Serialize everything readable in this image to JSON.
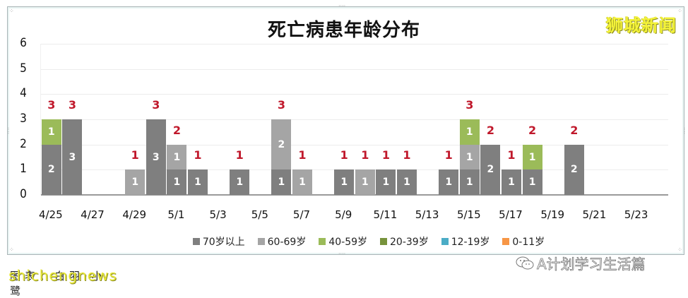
{
  "watermark_top": "狮城新闻",
  "watermark_bottom": "shichengnews",
  "watermark_bottom_under": "图表：白羽·小鹭",
  "source_badge": "A计划学习生活篇",
  "colors": {
    "70+": "#7f7f7f",
    "60-69": "#a5a5a5",
    "40-59": "#9bbb59",
    "20-39": "#77933c",
    "12-19": "#4bacc6",
    "0-11": "#f79646",
    "total_label": "#c0182b"
  },
  "chart_data": {
    "type": "bar",
    "stacked": true,
    "title": "死亡病患年龄分布",
    "xlabel": "",
    "ylabel": "",
    "ylim": [
      0,
      6
    ],
    "yticks": [
      0,
      1,
      2,
      3,
      4,
      5,
      6
    ],
    "grid": true,
    "legend_position": "bottom",
    "categories": [
      "4/25",
      "4/26",
      "4/27",
      "4/28",
      "4/29",
      "4/30",
      "5/1",
      "5/2",
      "5/3",
      "5/4",
      "5/5",
      "5/6",
      "5/7",
      "5/8",
      "5/9",
      "5/10",
      "5/11",
      "5/12",
      "5/13",
      "5/14",
      "5/15",
      "5/16",
      "5/17",
      "5/18",
      "5/19",
      "5/20",
      "5/21",
      "5/22",
      "5/23",
      "5/24"
    ],
    "xtick_labels": [
      "4/25",
      "4/27",
      "4/29",
      "5/1",
      "5/3",
      "5/5",
      "5/7",
      "5/9",
      "5/11",
      "5/13",
      "5/15",
      "5/17",
      "5/19",
      "5/21",
      "5/23"
    ],
    "series": [
      {
        "name": "70岁以上",
        "values": [
          2,
          3,
          0,
          0,
          0,
          3,
          1,
          1,
          0,
          1,
          0,
          1,
          0,
          0,
          1,
          0,
          1,
          1,
          0,
          1,
          1,
          2,
          1,
          1,
          0,
          2,
          0,
          0,
          0,
          0
        ]
      },
      {
        "name": "60-69岁",
        "values": [
          0,
          0,
          0,
          0,
          1,
          0,
          1,
          0,
          0,
          0,
          0,
          2,
          1,
          0,
          0,
          1,
          0,
          0,
          0,
          0,
          1,
          0,
          0,
          0,
          0,
          0,
          0,
          0,
          0,
          0
        ]
      },
      {
        "name": "40-59岁",
        "values": [
          1,
          0,
          0,
          0,
          0,
          0,
          0,
          0,
          0,
          0,
          0,
          0,
          0,
          0,
          0,
          0,
          0,
          0,
          0,
          0,
          1,
          0,
          0,
          1,
          0,
          0,
          0,
          0,
          0,
          0
        ]
      },
      {
        "name": "20-39岁",
        "values": [
          0,
          0,
          0,
          0,
          0,
          0,
          0,
          0,
          0,
          0,
          0,
          0,
          0,
          0,
          0,
          0,
          0,
          0,
          0,
          0,
          0,
          0,
          0,
          0,
          0,
          0,
          0,
          0,
          0,
          0
        ]
      },
      {
        "name": "12-19岁",
        "values": [
          0,
          0,
          0,
          0,
          0,
          0,
          0,
          0,
          0,
          0,
          0,
          0,
          0,
          0,
          0,
          0,
          0,
          0,
          0,
          0,
          0,
          0,
          0,
          0,
          0,
          0,
          0,
          0,
          0,
          0
        ]
      },
      {
        "name": "0-11岁",
        "values": [
          0,
          0,
          0,
          0,
          0,
          0,
          0,
          0,
          0,
          0,
          0,
          0,
          0,
          0,
          0,
          0,
          0,
          0,
          0,
          0,
          0,
          0,
          0,
          0,
          0,
          0,
          0,
          0,
          0,
          0
        ]
      }
    ],
    "totals": [
      3,
      3,
      0,
      0,
      1,
      3,
      2,
      1,
      0,
      1,
      0,
      3,
      1,
      0,
      1,
      1,
      1,
      1,
      0,
      1,
      3,
      2,
      1,
      2,
      0,
      2,
      0,
      0,
      0,
      0
    ]
  }
}
